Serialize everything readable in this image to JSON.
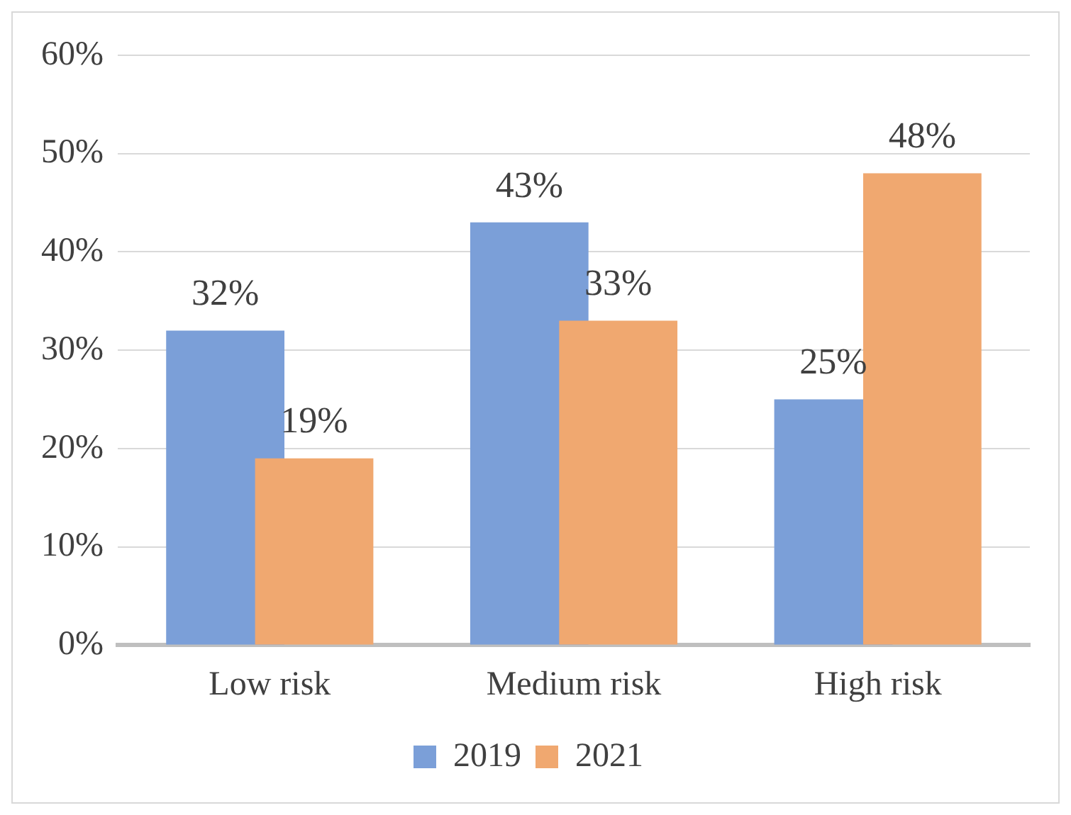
{
  "chart_data": {
    "type": "bar",
    "categories": [
      "Low risk",
      "Medium risk",
      "High risk"
    ],
    "series": [
      {
        "name": "2019",
        "color": "#7b9fd8",
        "values": [
          32,
          43,
          25
        ]
      },
      {
        "name": "2021",
        "color": "#f0a870",
        "values": [
          19,
          33,
          48
        ]
      }
    ],
    "ylim": [
      0,
      60
    ],
    "yticks": [
      {
        "value": 0,
        "label": "0%"
      },
      {
        "value": 10,
        "label": "10%"
      },
      {
        "value": 20,
        "label": "20%"
      },
      {
        "value": 30,
        "label": "30%"
      },
      {
        "value": 40,
        "label": "40%"
      },
      {
        "value": 50,
        "label": "50%"
      },
      {
        "value": 60,
        "label": "60%"
      }
    ],
    "value_labels": [
      [
        "32%",
        "43%",
        "25%"
      ],
      [
        "19%",
        "33%",
        "48%"
      ]
    ],
    "grid": "y",
    "legend": "bottom"
  }
}
